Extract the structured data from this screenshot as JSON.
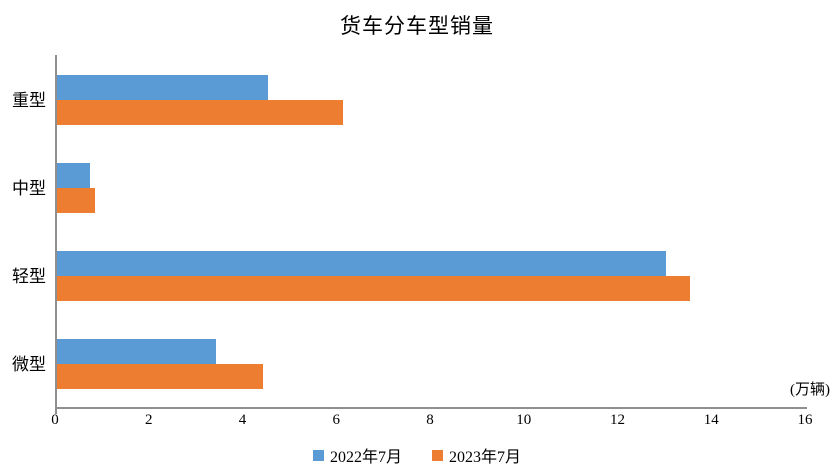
{
  "title": "货车分车型销量",
  "unit_label": "(万辆)",
  "legend": [
    {
      "label": "2022年7月",
      "color": "#5B9BD5"
    },
    {
      "label": "2023年7月",
      "color": "#ED7D31"
    }
  ],
  "colors": {
    "series1": "#5B9BD5",
    "series2": "#ED7D31",
    "axis": "#8f8f8f"
  },
  "chart_data": {
    "type": "bar",
    "orientation": "horizontal",
    "title": "货车分车型销量",
    "categories": [
      "重型",
      "中型",
      "轻型",
      "微型"
    ],
    "series": [
      {
        "name": "2022年7月",
        "color": "#5B9BD5",
        "values": [
          4.5,
          0.7,
          13.0,
          3.4
        ]
      },
      {
        "name": "2023年7月",
        "color": "#ED7D31",
        "values": [
          6.1,
          0.8,
          13.5,
          4.4
        ]
      }
    ],
    "xlabel": "",
    "ylabel": "",
    "unit": "万辆",
    "xlim": [
      0,
      16
    ],
    "xticks": [
      0,
      2,
      4,
      6,
      8,
      10,
      12,
      14,
      16
    ],
    "grid": false,
    "legend_position": "bottom"
  }
}
